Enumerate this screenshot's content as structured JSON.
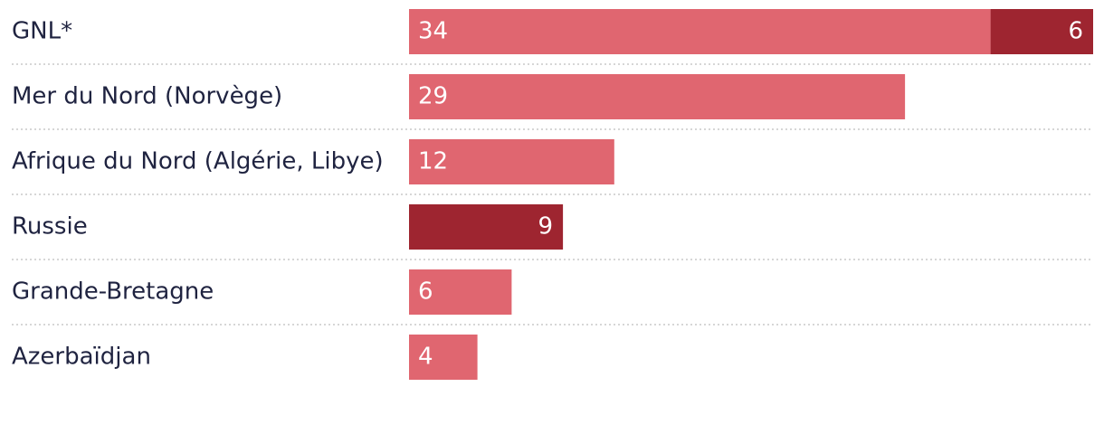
{
  "chart_data": {
    "type": "bar",
    "orientation": "horizontal",
    "stacked": true,
    "categories": [
      "GNL*",
      "Mer du Nord (Norvège)",
      "Afrique du Nord (Algérie, Libye)",
      "Russie",
      "Grande-Bretagne",
      "Azerbaïdjan"
    ],
    "series": [
      {
        "values": [
          34,
          29,
          12,
          0,
          6,
          4
        ],
        "color": "#e06670",
        "label_align": "start"
      },
      {
        "values": [
          6,
          0,
          0,
          9,
          0,
          0
        ],
        "color": "#9e2530",
        "label_align": "end"
      }
    ],
    "xlim": [
      0,
      40
    ],
    "grid": false,
    "legend": "none"
  }
}
